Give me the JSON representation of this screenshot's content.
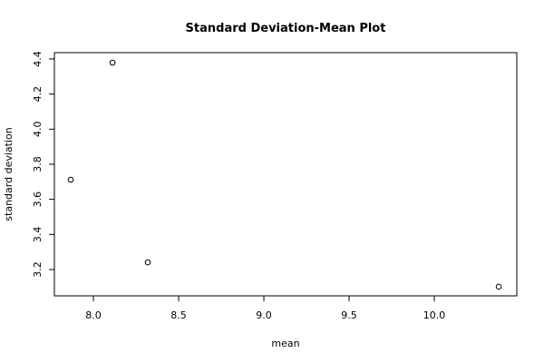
{
  "chart_data": {
    "type": "scatter",
    "title": "Standard Deviation-Mean Plot",
    "x_label": "mean",
    "y_label": "standard deviation",
    "x": [
      7.867,
      8.112,
      8.319,
      10.378
    ],
    "values": [
      3.712,
      4.379,
      3.241,
      3.102
    ],
    "color": "#000000",
    "xlim": [
      7.771,
      10.484
    ],
    "ylim": [
      3.05,
      4.436
    ],
    "xticks": [
      {
        "value": 8,
        "label": "8.0"
      },
      8.5,
      {
        "value": 9,
        "label": "9.0"
      },
      9.5,
      {
        "value": 10,
        "label": "10.0"
      }
    ],
    "yticks": [
      {
        "value": 3.2,
        "label": "3.2"
      },
      3.4,
      3.6,
      3.8,
      {
        "value": 4,
        "label": "4.0"
      },
      4.2,
      4.4
    ],
    "grid": false
  }
}
